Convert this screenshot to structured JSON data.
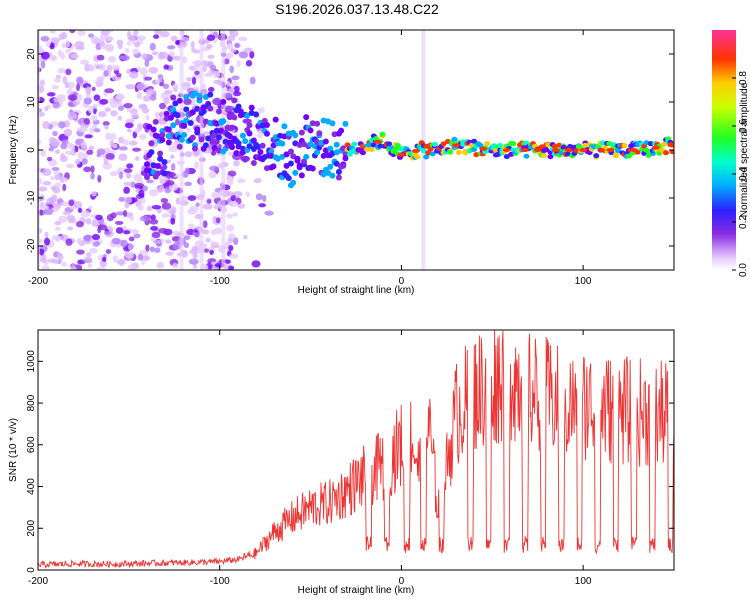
{
  "title": "S196.2026.037.13.48.C22",
  "chart_data": [
    {
      "type": "heatmap",
      "xlabel": "Height of straight line (km)",
      "ylabel": "Frequency (Hz)",
      "xlim": [
        -200,
        150
      ],
      "ylim": [
        -25,
        25
      ],
      "xticks": [
        -200,
        -100,
        0,
        100
      ],
      "yticks": [
        -20,
        -10,
        0,
        10,
        20
      ],
      "colorbar": {
        "label": "Normalized spectral amplitude",
        "range": [
          0,
          1
        ],
        "ticks": [
          "0.0",
          "0.2",
          "0.4",
          "0.6",
          "0.8"
        ],
        "tick_values": [
          0,
          0.2,
          0.4,
          0.6,
          0.8
        ]
      },
      "ridge": {
        "description_points_x": [
          -130,
          -110,
          -95,
          -80,
          -70,
          -60,
          -50,
          -40,
          -30,
          -20,
          -10,
          0,
          10,
          20,
          30,
          50,
          70,
          90,
          110,
          130,
          150
        ],
        "frequency": [
          7,
          6,
          5,
          3,
          1,
          -2,
          2,
          0,
          0,
          1,
          2,
          -1,
          0,
          0,
          1,
          0,
          0,
          0,
          0,
          0,
          1
        ]
      }
    },
    {
      "type": "line",
      "xlabel": "Height of straight line (km)",
      "ylabel": "SNR (10 * v/v)",
      "xlim": [
        -200,
        150
      ],
      "ylim": [
        0,
        1150
      ],
      "xticks": [
        -200,
        -100,
        0,
        100
      ],
      "yticks": [
        0,
        200,
        400,
        600,
        800,
        1000
      ],
      "color": "#ee3333",
      "series": [
        {
          "name": "SNR",
          "x": [
            -200,
            -180,
            -160,
            -140,
            -120,
            -100,
            -90,
            -80,
            -70,
            -60,
            -50,
            -40,
            -30,
            -20,
            -10,
            -5,
            0,
            5,
            10,
            15,
            20,
            25,
            30,
            40,
            50,
            60,
            70,
            80,
            90,
            100,
            110,
            120,
            130,
            140,
            150
          ],
          "y": [
            25,
            30,
            28,
            32,
            35,
            40,
            50,
            80,
            180,
            250,
            300,
            320,
            380,
            450,
            500,
            550,
            600,
            650,
            480,
            700,
            300,
            500,
            750,
            850,
            900,
            950,
            850,
            830,
            780,
            800,
            780,
            760,
            760,
            740,
            750
          ]
        }
      ]
    }
  ]
}
